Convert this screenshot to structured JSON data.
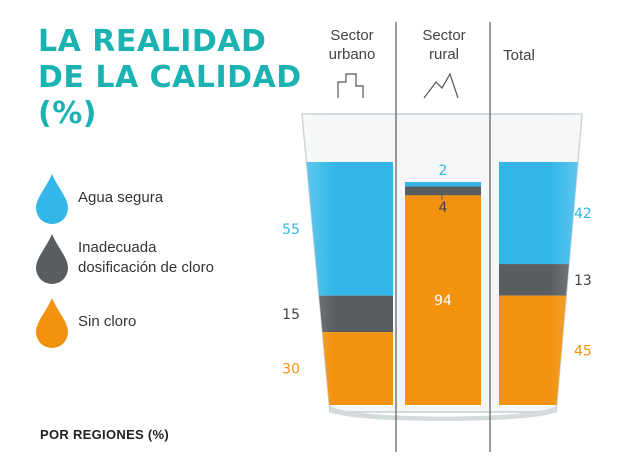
{
  "title": [
    "LA REALIDAD",
    "DE LA CALIDAD",
    "(%)"
  ],
  "footer": "POR REGIONES (%)",
  "colors": {
    "title": "#1bb3b1",
    "safe": "#33b7e8",
    "inadequate": "#5a5d60",
    "no_chlorine": "#f2920f"
  },
  "legend": [
    {
      "label": "Agua segura",
      "icon": "drop-icon",
      "color": "#33b7e8"
    },
    {
      "label": "Inadecuada\ndosificación de cloro",
      "icon": "drop-icon",
      "color": "#5a5d60"
    },
    {
      "label": "Sin cloro",
      "icon": "drop-icon",
      "color": "#f2920f"
    }
  ],
  "columns": [
    {
      "header": "Sector\nurbano",
      "icon": "buildings-icon"
    },
    {
      "header": "Sector\nrural",
      "icon": "mountains-icon"
    },
    {
      "header": "Total",
      "icon": ""
    }
  ],
  "chart_data": {
    "type": "bar",
    "stacked": true,
    "units": "%",
    "categories": [
      "Sector urbano",
      "Sector rural",
      "Total"
    ],
    "series": [
      {
        "name": "Agua segura",
        "values": [
          55,
          2,
          42
        ]
      },
      {
        "name": "Inadecuada dosificación de cloro",
        "values": [
          15,
          4,
          13
        ]
      },
      {
        "name": "Sin cloro",
        "values": [
          30,
          94,
          45
        ]
      }
    ]
  }
}
